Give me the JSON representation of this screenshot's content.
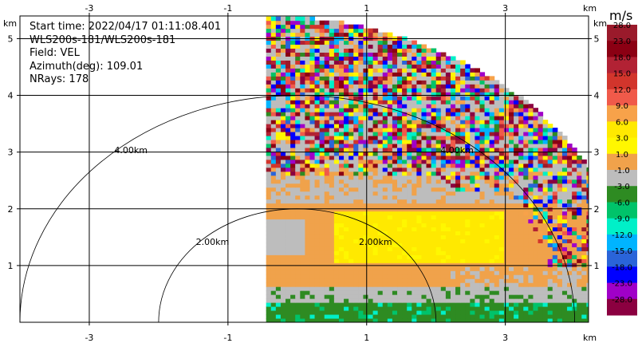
{
  "info": {
    "start_time": "Start time: 2022/04/17 01:11:08.401",
    "instrument": "WLS200s-181/WLS200s-181",
    "field": "Field: VEL",
    "azimuth": "Azimuth(deg): 109.01",
    "nrays": "NRays: 178"
  },
  "axis_unit": "km",
  "colorbar_unit": "m/s",
  "chart_data": {
    "type": "heatmap",
    "projection": "RHI (range-height, quarter sector)",
    "x_ticks": [
      "-3",
      "-1",
      "1",
      "3"
    ],
    "y_ticks": [
      "1",
      "2",
      "3",
      "4",
      "5"
    ],
    "xlim": [
      -4.0,
      4.2
    ],
    "ylim": [
      0,
      5.4
    ],
    "grid": true,
    "range_rings": [
      {
        "radius_km": 2.0,
        "label": "2.00km"
      },
      {
        "radius_km": 4.0,
        "label": "4.00km"
      }
    ],
    "colorbar": {
      "unit": "m/s",
      "levels": [
        "28.0",
        "23.0",
        "18.0",
        "15.0",
        "12.0",
        "9.0",
        "6.0",
        "3.0",
        "1.0",
        "-1.0",
        "-3.0",
        "-6.0",
        "-9.0",
        "-12.0",
        "-15.0",
        "-18.0",
        "-23.0",
        "-28.0"
      ],
      "colors": [
        "#9a1a2b",
        "#8b0013",
        "#b22234",
        "#d2352c",
        "#f05a4a",
        "#f7a24a",
        "#ffe900",
        "#fff700",
        "#f0a24b",
        "#bdbdbd",
        "#2e8b22",
        "#00c36a",
        "#00f0c8",
        "#00b4ff",
        "#2a64d9",
        "#0000ff",
        "#a000c8",
        "#8b0040"
      ]
    }
  }
}
